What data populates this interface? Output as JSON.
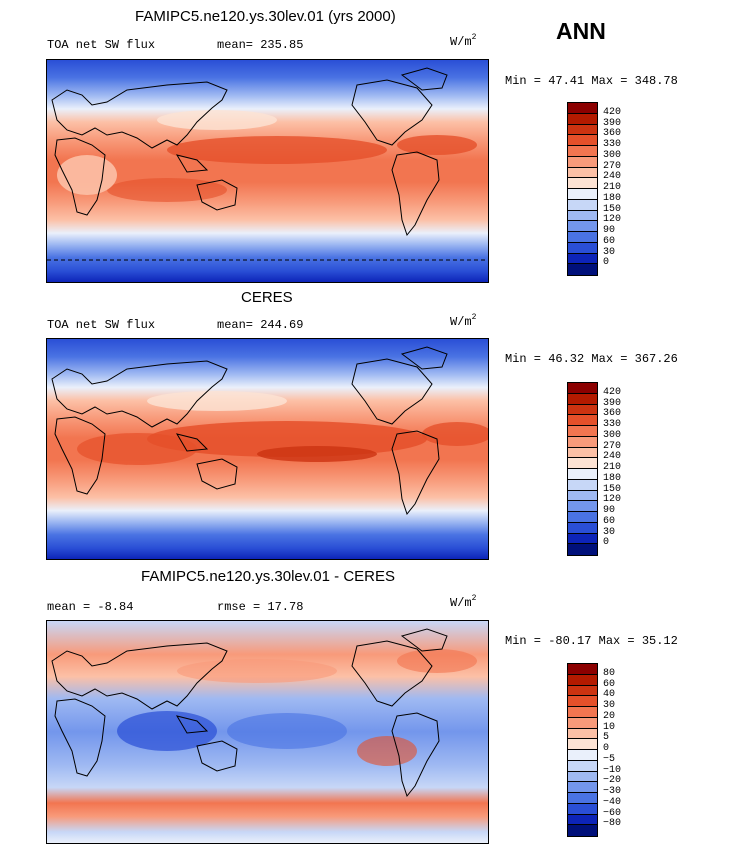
{
  "season": "ANN",
  "units_base": "W/m",
  "units_exp": "2",
  "panels": [
    {
      "title": "FAMIPC5.ne120.ys.30lev.01 (yrs 2000)",
      "left_label": "TOA net SW flux",
      "right_label": "mean= 235.85",
      "minmax": "Min =  47.41 Max = 348.78",
      "levels": [
        "420",
        "390",
        "360",
        "330",
        "300",
        "270",
        "240",
        "210",
        "180",
        "150",
        "120",
        "90",
        "60",
        "30",
        "0"
      ],
      "colors": [
        "#8b0000",
        "#b31a00",
        "#cc3311",
        "#e5502a",
        "#f27550",
        "#f89a7a",
        "#fcc0a6",
        "#fde3d4",
        "#eaf0fb",
        "#c7d7f7",
        "#9fb9f2",
        "#7396ec",
        "#4a73e3",
        "#2a4fd6",
        "#0d24b8",
        "#00107a"
      ]
    },
    {
      "title": "CERES",
      "left_label": "TOA net SW flux",
      "right_label": "mean= 244.69",
      "minmax": "Min =  46.32 Max = 367.26",
      "levels": [
        "420",
        "390",
        "360",
        "330",
        "300",
        "270",
        "240",
        "210",
        "180",
        "150",
        "120",
        "90",
        "60",
        "30",
        "0"
      ],
      "colors": [
        "#8b0000",
        "#b31a00",
        "#cc3311",
        "#e5502a",
        "#f27550",
        "#f89a7a",
        "#fcc0a6",
        "#fde3d4",
        "#eaf0fb",
        "#c7d7f7",
        "#9fb9f2",
        "#7396ec",
        "#4a73e3",
        "#2a4fd6",
        "#0d24b8",
        "#00107a"
      ]
    },
    {
      "title": "FAMIPC5.ne120.ys.30lev.01 - CERES",
      "left_label": "mean =  -8.84",
      "right_label": "rmse =  17.78",
      "minmax": "Min = -80.17 Max =  35.12",
      "levels": [
        "80",
        "60",
        "40",
        "30",
        "20",
        "10",
        "5",
        "0",
        "−5",
        "−10",
        "−20",
        "−30",
        "−40",
        "−60",
        "−80"
      ],
      "colors": [
        "#8b0000",
        "#b31a00",
        "#cc3311",
        "#e5502a",
        "#f27550",
        "#f89a7a",
        "#fcc0a6",
        "#fde3d4",
        "#eaf0fb",
        "#c7d7f7",
        "#9fb9f2",
        "#7396ec",
        "#4a73e3",
        "#2a4fd6",
        "#0d24b8",
        "#00107a"
      ]
    }
  ],
  "chart_data": [
    {
      "type": "heatmap",
      "title": "FAMIPC5.ne120.ys.30lev.01 (yrs 2000)",
      "variable": "TOA net SW flux",
      "units": "W/m2",
      "mean": 235.85,
      "min": 47.41,
      "max": 348.78,
      "contour_levels": [
        0,
        30,
        60,
        90,
        120,
        150,
        180,
        210,
        240,
        270,
        300,
        330,
        360,
        390,
        420
      ],
      "zonal_mean_approx": {
        "lat": [
          80,
          60,
          40,
          20,
          0,
          -20,
          -40,
          -60,
          -80
        ],
        "value": [
          90,
          160,
          225,
          300,
          320,
          300,
          225,
          140,
          70
        ]
      }
    },
    {
      "type": "heatmap",
      "title": "CERES",
      "variable": "TOA net SW flux",
      "units": "W/m2",
      "mean": 244.69,
      "min": 46.32,
      "max": 367.26,
      "contour_levels": [
        0,
        30,
        60,
        90,
        120,
        150,
        180,
        210,
        240,
        270,
        300,
        330,
        360,
        390,
        420
      ],
      "zonal_mean_approx": {
        "lat": [
          80,
          60,
          40,
          20,
          0,
          -20,
          -40,
          -60,
          -80
        ],
        "value": [
          85,
          165,
          235,
          310,
          335,
          320,
          240,
          140,
          70
        ]
      }
    },
    {
      "type": "heatmap",
      "title": "FAMIPC5.ne120.ys.30lev.01 - CERES",
      "units": "W/m2",
      "mean": -8.84,
      "rmse": 17.78,
      "min": -80.17,
      "max": 35.12,
      "contour_levels": [
        -80,
        -60,
        -40,
        -30,
        -20,
        -10,
        -5,
        0,
        5,
        10,
        20,
        30,
        40,
        60,
        80
      ]
    }
  ]
}
